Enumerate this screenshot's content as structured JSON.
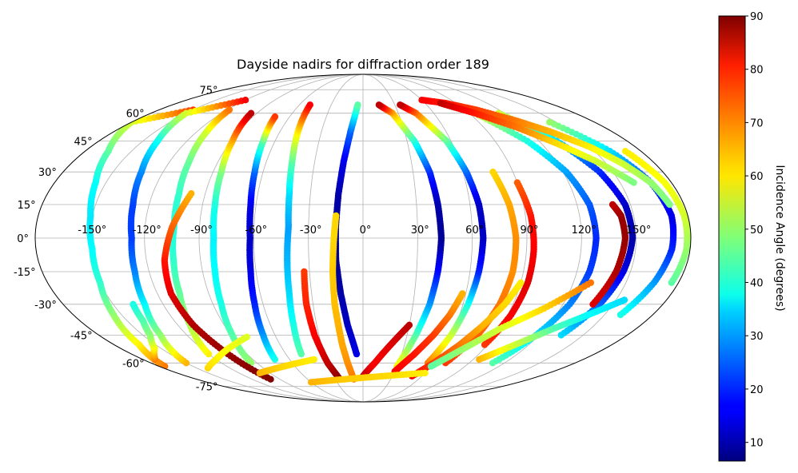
{
  "chart_data": {
    "type": "scatter",
    "projection": "mollweide",
    "title": "Dayside nadirs for diffraction order 189",
    "colorbar": {
      "label": "Incidence Angle (degrees)",
      "colormap": "jet",
      "range": [
        6.5,
        90
      ],
      "ticks": [
        "10",
        "20",
        "30",
        "40",
        "50",
        "60",
        "70",
        "80",
        "90"
      ],
      "tick_values": [
        10,
        20,
        30,
        40,
        50,
        60,
        70,
        80,
        90
      ]
    },
    "lon_tick_labels": [
      "-150°",
      "-120°",
      "-90°",
      "-60°",
      "-30°",
      "0°",
      "30°",
      "60°",
      "90°",
      "120°",
      "150°"
    ],
    "lon_tick_values": [
      -150,
      -120,
      -90,
      -60,
      -30,
      0,
      30,
      60,
      90,
      120,
      150
    ],
    "lat_tick_labels": [
      "-75°",
      "-60°",
      "-45°",
      "-30°",
      "-15°",
      "0°",
      "15°",
      "30°",
      "45°",
      "60°",
      "75°"
    ],
    "lat_tick_values": [
      -75,
      -60,
      -45,
      -30,
      -15,
      0,
      15,
      30,
      45,
      60,
      75
    ],
    "grid": true,
    "series": [
      {
        "lat": [
          -62,
          -50,
          -35,
          -20,
          -5,
          10,
          25,
          40,
          55,
          62
        ],
        "lon": [
          -175,
          -162,
          -155,
          -150,
          -149,
          -151,
          -156,
          -165,
          -180,
          -150
        ],
        "inc": [
          70,
          60,
          50,
          42,
          38,
          36,
          38,
          45,
          55,
          75
        ]
      },
      {
        "lat": [
          -60,
          -45,
          -30,
          -15,
          0,
          15,
          30,
          45,
          60,
          68
        ],
        "lon": [
          -150,
          -138,
          -131,
          -128,
          -127,
          -129,
          -133,
          -140,
          -150,
          -120
        ],
        "inc": [
          65,
          50,
          38,
          28,
          22,
          22,
          28,
          38,
          55,
          80
        ]
      },
      {
        "lat": [
          -55,
          -40,
          -25,
          -10,
          5,
          20,
          35,
          50,
          62
        ],
        "lon": [
          -120,
          -112,
          -107,
          -105,
          -104,
          -105,
          -108,
          -113,
          -118
        ],
        "inc": [
          60,
          52,
          46,
          42,
          40,
          42,
          46,
          55,
          70
        ]
      },
      {
        "lat": [
          -60,
          -45,
          -30,
          -15,
          0,
          15,
          30,
          45,
          60
        ],
        "lon": [
          -95,
          -89,
          -85,
          -83,
          -82,
          -83,
          -85,
          -89,
          -95
        ],
        "inc": [
          50,
          45,
          40,
          38,
          37,
          40,
          48,
          65,
          85
        ]
      },
      {
        "lat": [
          -58,
          -45,
          -30,
          -15,
          0,
          15,
          30,
          45,
          58
        ],
        "lon": [
          -72,
          -68,
          -65,
          -63,
          -62,
          -63,
          -65,
          -68,
          -72
        ],
        "inc": [
          40,
          30,
          20,
          15,
          12,
          15,
          25,
          45,
          75
        ]
      },
      {
        "lat": [
          -55,
          -40,
          -25,
          -10,
          5,
          20,
          35,
          50,
          65
        ],
        "lon": [
          -48,
          -45,
          -43,
          -42,
          -41,
          -42,
          -44,
          -47,
          -50
        ],
        "inc": [
          45,
          40,
          35,
          32,
          30,
          35,
          45,
          60,
          80
        ]
      },
      {
        "lat": [
          -55,
          -40,
          -25,
          -10,
          5,
          20,
          35,
          50,
          65
        ],
        "lon": [
          -5,
          -10,
          -13,
          -15,
          -15,
          -14,
          -12,
          -9,
          -5
        ],
        "inc": [
          15,
          12,
          10,
          8,
          8,
          10,
          15,
          25,
          45
        ]
      },
      {
        "lat": [
          -62,
          -45,
          -30,
          -15,
          0,
          15,
          30,
          45,
          60,
          65
        ],
        "lon": [
          30,
          36,
          40,
          42,
          43,
          42,
          40,
          35,
          25,
          15
        ],
        "inc": [
          60,
          45,
          30,
          18,
          8,
          10,
          20,
          40,
          65,
          85
        ]
      },
      {
        "lat": [
          -60,
          -45,
          -30,
          -15,
          0,
          15,
          30,
          45,
          60,
          65
        ],
        "lon": [
          55,
          60,
          63,
          65,
          66,
          65,
          62,
          57,
          45,
          35
        ],
        "inc": [
          70,
          55,
          40,
          20,
          12,
          12,
          25,
          45,
          70,
          85
        ]
      },
      {
        "lat": [
          -60,
          -45,
          -30,
          -15,
          0,
          15,
          30
        ],
        "lon": [
          70,
          78,
          82,
          84,
          84,
          82,
          78
        ],
        "inc": [
          75,
          72,
          70,
          68,
          68,
          66,
          62
        ]
      },
      {
        "lat": [
          -50,
          -35,
          -20,
          -5,
          10,
          25
        ],
        "lon": [
          88,
          92,
          94,
          94,
          93,
          90
        ],
        "inc": [
          75,
          80,
          82,
          80,
          78,
          72
        ]
      },
      {
        "lat": [
          -60,
          -45,
          -30,
          -15,
          0,
          15,
          30,
          45,
          60
        ],
        "lon": [
          110,
          118,
          124,
          127,
          128,
          127,
          122,
          112,
          95
        ],
        "inc": [
          45,
          35,
          28,
          22,
          20,
          24,
          30,
          40,
          55
        ]
      },
      {
        "lat": [
          -45,
          -30,
          -15,
          0,
          15,
          30,
          45,
          60
        ],
        "lon": [
          135,
          142,
          146,
          148,
          147,
          142,
          132,
          115
        ],
        "inc": [
          35,
          25,
          15,
          10,
          12,
          20,
          35,
          55
        ]
      },
      {
        "lat": [
          -35,
          -20,
          -5,
          10,
          25,
          40,
          55
        ],
        "lon": [
          160,
          166,
          170,
          171,
          168,
          160,
          145
        ],
        "inc": [
          40,
          30,
          20,
          15,
          22,
          35,
          50
        ]
      },
      {
        "lat": [
          -20,
          -5,
          10,
          25,
          40
        ],
        "lon": [
          176,
          178,
          178,
          176,
          170
        ],
        "inc": [
          45,
          50,
          55,
          58,
          60
        ]
      },
      {
        "lat": [
          -70,
          -55,
          -40,
          -25,
          -10,
          5,
          20
        ],
        "lon": [
          -100,
          -105,
          -110,
          -112,
          -110,
          -105,
          -98
        ],
        "inc": [
          90,
          88,
          86,
          82,
          78,
          72,
          65
        ]
      },
      {
        "lat": [
          -70,
          -60,
          -45,
          -30,
          -15
        ],
        "lon": [
          -25,
          -30,
          -33,
          -34,
          -33
        ],
        "inc": [
          90,
          85,
          80,
          77,
          75
        ]
      },
      {
        "lat": [
          -70,
          -60,
          -50,
          -40,
          -30,
          -15,
          0,
          10
        ],
        "lon": [
          -10,
          -13,
          -15,
          -16,
          -17,
          -17,
          -16,
          -15
        ],
        "inc": [
          70,
          68,
          66,
          65,
          64,
          63,
          62,
          62
        ]
      },
      {
        "lat": [
          -68,
          -60,
          -50,
          -40
        ],
        "lon": [
          0,
          10,
          20,
          30
        ],
        "inc": [
          85,
          80,
          82,
          85
        ]
      },
      {
        "lat": [
          -65,
          -55,
          -45,
          -35,
          -25
        ],
        "lon": [
          30,
          40,
          48,
          54,
          58
        ],
        "inc": [
          80,
          78,
          75,
          70,
          65
        ]
      },
      {
        "lat": [
          -68,
          -60,
          -50,
          -40,
          -30,
          -20
        ],
        "lon": [
          50,
          60,
          70,
          78,
          85,
          90
        ],
        "inc": [
          80,
          75,
          70,
          65,
          62,
          60
        ]
      },
      {
        "lat": [
          -62,
          -52,
          -42,
          -32,
          -20
        ],
        "lon": [
          60,
          75,
          90,
          110,
          130
        ],
        "inc": [
          45,
          50,
          55,
          62,
          70
        ]
      },
      {
        "lat": [
          -30,
          -15,
          0,
          10,
          15
        ],
        "lon": [
          138,
          142,
          144,
          143,
          140
        ],
        "inc": [
          82,
          86,
          88,
          88,
          85
        ]
      },
      {
        "lat": [
          -58,
          -50,
          -42,
          -35,
          -28
        ],
        "lon": [
          95,
          110,
          125,
          140,
          155
        ],
        "inc": [
          65,
          55,
          45,
          38,
          35
        ]
      },
      {
        "lat": [
          68,
          66,
          62,
          56,
          50,
          42,
          34,
          25,
          15
        ],
        "lon": [
          60,
          80,
          100,
          120,
          135,
          150,
          160,
          168,
          172
        ],
        "inc": [
          80,
          78,
          75,
          70,
          65,
          60,
          55,
          50,
          48
        ]
      },
      {
        "lat": [
          66,
          60,
          52,
          44,
          35,
          25
        ],
        "lon": [
          75,
          95,
          115,
          130,
          145,
          158
        ],
        "inc": [
          85,
          78,
          70,
          62,
          55,
          48
        ]
      },
      {
        "lat": [
          -58,
          -52,
          -45,
          -38,
          -30
        ],
        "lon": [
          -170,
          -155,
          -145,
          -140,
          -138
        ],
        "inc": [
          70,
          60,
          50,
          45,
          40
        ]
      },
      {
        "lat": [
          -63,
          -58,
          -52,
          -46
        ],
        "lon": [
          -140,
          -120,
          -100,
          -80
        ],
        "inc": [
          62,
          60,
          58,
          56
        ]
      },
      {
        "lat": [
          -66,
          -62,
          -58
        ],
        "lon": [
          -100,
          -70,
          -40
        ],
        "inc": [
          65,
          62,
          60
        ]
      },
      {
        "lat": [
          -72,
          -70,
          -68,
          -66
        ],
        "lon": [
          -60,
          -20,
          20,
          60
        ],
        "inc": [
          65,
          63,
          62,
          60
        ]
      }
    ]
  }
}
